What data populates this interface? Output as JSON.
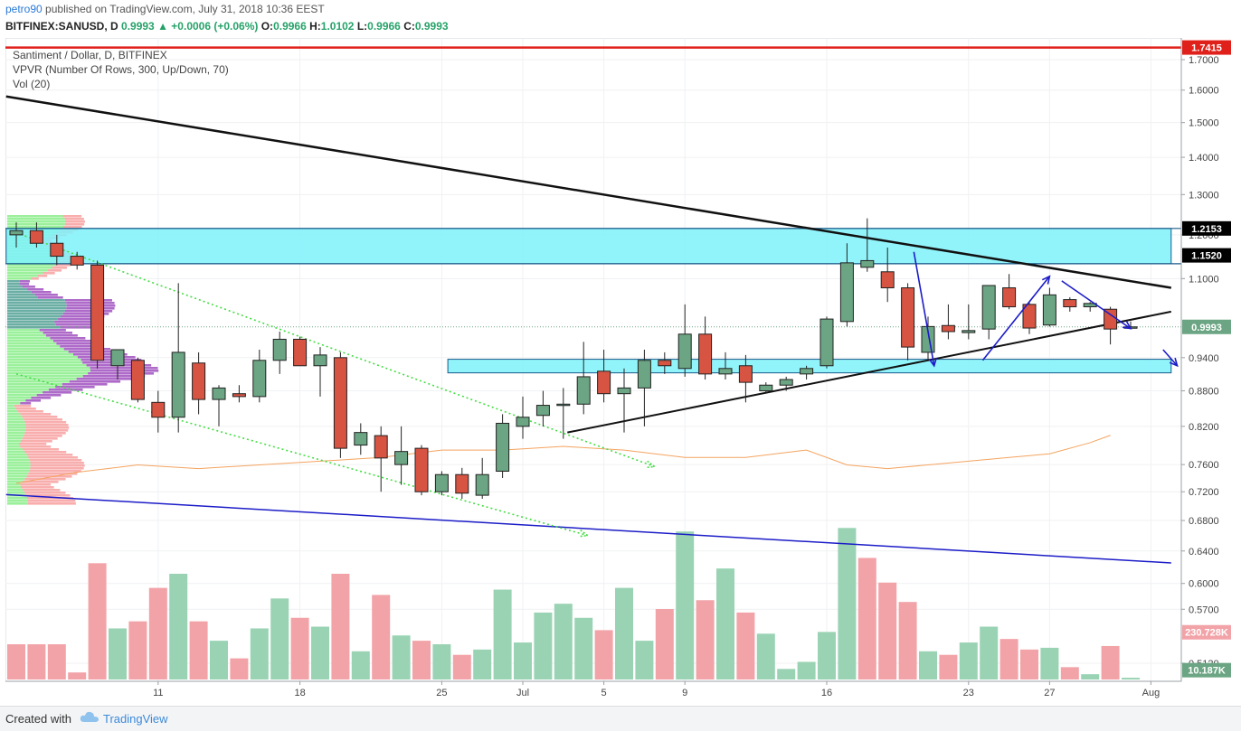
{
  "publication": {
    "user": "petro90",
    "text": "published on TradingView.com, July 31, 2018 10:36 EEST"
  },
  "ohlc": {
    "symbol": "BITFINEX:SANUSD, D",
    "last": "0.9993",
    "change": "+0.0006 (+0.06%)",
    "o_label": "O:",
    "o": "0.9966",
    "h_label": "H:",
    "h": "1.0102",
    "l_label": "L:",
    "l": "0.9966",
    "c_label": "C:",
    "c": "0.9993"
  },
  "legend": {
    "title": "Santiment / Dollar, D, BITFINEX",
    "vpvr": "VPVR (Number Of Rows, 300, Up/Down, 70)",
    "vol": "Vol (20)"
  },
  "footer": {
    "made": "Created with",
    "brand": "TradingView"
  },
  "colors": {
    "up": "#6ba583",
    "down": "#d75442",
    "zone": "#7ff2fa",
    "red_line": "#e0201a",
    "blue_line": "#1c1cc8",
    "green_dot": "#44dd44",
    "vol_up": "#9ad3b4",
    "vol_down": "#f2a3a8",
    "vol_ma": "#f4a460"
  },
  "chart_data": {
    "type": "candlestick",
    "title": "Santiment / Dollar, D, BITFINEX",
    "y_axis": {
      "scale": "log",
      "ticks": [
        "1.7000",
        "1.6000",
        "1.5000",
        "1.4000",
        "1.3000",
        "1.2000",
        "1.1000",
        "0.9400",
        "0.8800",
        "0.8200",
        "0.7600",
        "0.7200",
        "0.6800",
        "0.6400",
        "0.6000",
        "0.5700",
        "0.5120"
      ],
      "tick_values": [
        1.7,
        1.6,
        1.5,
        1.4,
        1.3,
        1.2,
        1.1,
        0.94,
        0.88,
        0.82,
        0.76,
        0.72,
        0.68,
        0.64,
        0.6,
        0.57,
        0.512
      ],
      "price_labels": [
        {
          "text": "1.7415",
          "value": 1.7415,
          "color": "#e0201a"
        },
        {
          "text": "1.2153",
          "value": 1.2153,
          "color": "#000000"
        },
        {
          "text": "1.1520",
          "value": 1.152,
          "color": "#000000"
        },
        {
          "text": "0.9993",
          "value": 0.9993,
          "color": "#6ba583"
        },
        {
          "text": "230.728K",
          "value": 0.5445,
          "color": "#f2a3a8"
        },
        {
          "text": "10.187K",
          "value": 0.505,
          "color": "#6ba583"
        }
      ]
    },
    "x_axis": {
      "ticks": [
        "11",
        "18",
        "25",
        "Jul",
        "5",
        "9",
        "16",
        "23",
        "27",
        "Aug"
      ],
      "tick_index": [
        7,
        14,
        21,
        25,
        29,
        33,
        40,
        47,
        51,
        56
      ]
    },
    "candles": [
      {
        "i": 0,
        "o": 1.2,
        "h": 1.23,
        "l": 1.17,
        "c": 1.21
      },
      {
        "i": 1,
        "o": 1.21,
        "h": 1.23,
        "l": 1.17,
        "c": 1.18
      },
      {
        "i": 2,
        "o": 1.18,
        "h": 1.2,
        "l": 1.13,
        "c": 1.15
      },
      {
        "i": 3,
        "o": 1.15,
        "h": 1.16,
        "l": 1.12,
        "c": 1.13
      },
      {
        "i": 4,
        "o": 1.13,
        "h": 1.14,
        "l": 0.92,
        "c": 0.935
      },
      {
        "i": 5,
        "o": 0.925,
        "h": 0.95,
        "l": 0.9,
        "c": 0.955
      },
      {
        "i": 6,
        "o": 0.935,
        "h": 0.94,
        "l": 0.86,
        "c": 0.865
      },
      {
        "i": 7,
        "o": 0.86,
        "h": 0.88,
        "l": 0.81,
        "c": 0.835
      },
      {
        "i": 8,
        "o": 0.835,
        "h": 1.09,
        "l": 0.81,
        "c": 0.95
      },
      {
        "i": 9,
        "o": 0.93,
        "h": 0.95,
        "l": 0.84,
        "c": 0.865
      },
      {
        "i": 10,
        "o": 0.865,
        "h": 0.89,
        "l": 0.82,
        "c": 0.885
      },
      {
        "i": 11,
        "o": 0.875,
        "h": 0.89,
        "l": 0.86,
        "c": 0.87
      },
      {
        "i": 12,
        "o": 0.87,
        "h": 0.955,
        "l": 0.86,
        "c": 0.935
      },
      {
        "i": 13,
        "o": 0.935,
        "h": 0.99,
        "l": 0.91,
        "c": 0.975
      },
      {
        "i": 14,
        "o": 0.975,
        "h": 0.98,
        "l": 0.93,
        "c": 0.925
      },
      {
        "i": 15,
        "o": 0.925,
        "h": 0.96,
        "l": 0.87,
        "c": 0.945
      },
      {
        "i": 16,
        "o": 0.94,
        "h": 0.95,
        "l": 0.77,
        "c": 0.785
      },
      {
        "i": 17,
        "o": 0.79,
        "h": 0.825,
        "l": 0.775,
        "c": 0.81
      },
      {
        "i": 18,
        "o": 0.805,
        "h": 0.82,
        "l": 0.72,
        "c": 0.77
      },
      {
        "i": 19,
        "o": 0.76,
        "h": 0.82,
        "l": 0.73,
        "c": 0.78
      },
      {
        "i": 20,
        "o": 0.785,
        "h": 0.79,
        "l": 0.715,
        "c": 0.72
      },
      {
        "i": 21,
        "o": 0.72,
        "h": 0.75,
        "l": 0.715,
        "c": 0.745
      },
      {
        "i": 22,
        "o": 0.745,
        "h": 0.755,
        "l": 0.71,
        "c": 0.718
      },
      {
        "i": 23,
        "o": 0.715,
        "h": 0.77,
        "l": 0.71,
        "c": 0.745
      },
      {
        "i": 24,
        "o": 0.75,
        "h": 0.84,
        "l": 0.74,
        "c": 0.825
      },
      {
        "i": 25,
        "o": 0.82,
        "h": 0.87,
        "l": 0.8,
        "c": 0.835
      },
      {
        "i": 26,
        "o": 0.838,
        "h": 0.88,
        "l": 0.82,
        "c": 0.855
      },
      {
        "i": 27,
        "o": 0.857,
        "h": 0.885,
        "l": 0.8,
        "c": 0.857
      },
      {
        "i": 28,
        "o": 0.857,
        "h": 0.97,
        "l": 0.84,
        "c": 0.905
      },
      {
        "i": 29,
        "o": 0.915,
        "h": 0.955,
        "l": 0.86,
        "c": 0.875
      },
      {
        "i": 30,
        "o": 0.875,
        "h": 0.92,
        "l": 0.81,
        "c": 0.885
      },
      {
        "i": 31,
        "o": 0.885,
        "h": 0.955,
        "l": 0.82,
        "c": 0.935
      },
      {
        "i": 32,
        "o": 0.935,
        "h": 0.95,
        "l": 0.91,
        "c": 0.925
      },
      {
        "i": 33,
        "o": 0.92,
        "h": 1.045,
        "l": 0.905,
        "c": 0.985
      },
      {
        "i": 34,
        "o": 0.985,
        "h": 1.02,
        "l": 0.9,
        "c": 0.91
      },
      {
        "i": 35,
        "o": 0.91,
        "h": 0.95,
        "l": 0.9,
        "c": 0.92
      },
      {
        "i": 36,
        "o": 0.925,
        "h": 0.945,
        "l": 0.86,
        "c": 0.895
      },
      {
        "i": 37,
        "o": 0.88,
        "h": 0.895,
        "l": 0.875,
        "c": 0.89
      },
      {
        "i": 38,
        "o": 0.89,
        "h": 0.905,
        "l": 0.88,
        "c": 0.9
      },
      {
        "i": 39,
        "o": 0.91,
        "h": 0.925,
        "l": 0.9,
        "c": 0.92
      },
      {
        "i": 40,
        "o": 0.925,
        "h": 1.02,
        "l": 0.92,
        "c": 1.015
      },
      {
        "i": 41,
        "o": 1.01,
        "h": 1.18,
        "l": 1.0,
        "c": 1.135
      },
      {
        "i": 42,
        "o": 1.125,
        "h": 1.24,
        "l": 1.115,
        "c": 1.14
      },
      {
        "i": 43,
        "o": 1.115,
        "h": 1.17,
        "l": 1.05,
        "c": 1.08
      },
      {
        "i": 44,
        "o": 1.08,
        "h": 1.09,
        "l": 0.935,
        "c": 0.96
      },
      {
        "i": 45,
        "o": 0.95,
        "h": 1.02,
        "l": 0.935,
        "c": 1.0
      },
      {
        "i": 46,
        "o": 1.002,
        "h": 1.045,
        "l": 0.975,
        "c": 0.99
      },
      {
        "i": 47,
        "o": 0.988,
        "h": 1.045,
        "l": 0.975,
        "c": 0.992
      },
      {
        "i": 48,
        "o": 0.995,
        "h": 1.085,
        "l": 0.975,
        "c": 1.085
      },
      {
        "i": 49,
        "o": 1.08,
        "h": 1.11,
        "l": 1.035,
        "c": 1.04
      },
      {
        "i": 50,
        "o": 1.045,
        "h": 1.05,
        "l": 0.985,
        "c": 0.997
      },
      {
        "i": 51,
        "o": 1.003,
        "h": 1.08,
        "l": 1.0,
        "c": 1.065
      },
      {
        "i": 52,
        "o": 1.055,
        "h": 1.06,
        "l": 1.03,
        "c": 1.04
      },
      {
        "i": 53,
        "o": 1.04,
        "h": 1.05,
        "l": 1.03,
        "c": 1.047
      },
      {
        "i": 54,
        "o": 1.035,
        "h": 1.04,
        "l": 0.965,
        "c": 0.995
      },
      {
        "i": 55,
        "o": 0.9966,
        "h": 1.0102,
        "l": 0.9966,
        "c": 0.9993
      }
    ],
    "volume": [
      {
        "i": 0,
        "v": 20,
        "dir": "down"
      },
      {
        "i": 1,
        "v": 20,
        "dir": "down"
      },
      {
        "i": 2,
        "v": 20,
        "dir": "down"
      },
      {
        "i": 3,
        "v": 4,
        "dir": "down"
      },
      {
        "i": 4,
        "v": 66,
        "dir": "down"
      },
      {
        "i": 5,
        "v": 29,
        "dir": "up"
      },
      {
        "i": 6,
        "v": 33,
        "dir": "down"
      },
      {
        "i": 7,
        "v": 52,
        "dir": "down"
      },
      {
        "i": 8,
        "v": 60,
        "dir": "up"
      },
      {
        "i": 9,
        "v": 33,
        "dir": "down"
      },
      {
        "i": 10,
        "v": 22,
        "dir": "up"
      },
      {
        "i": 11,
        "v": 12,
        "dir": "down"
      },
      {
        "i": 12,
        "v": 29,
        "dir": "up"
      },
      {
        "i": 13,
        "v": 46,
        "dir": "up"
      },
      {
        "i": 14,
        "v": 35,
        "dir": "down"
      },
      {
        "i": 15,
        "v": 30,
        "dir": "up"
      },
      {
        "i": 16,
        "v": 60,
        "dir": "down"
      },
      {
        "i": 17,
        "v": 16,
        "dir": "up"
      },
      {
        "i": 18,
        "v": 48,
        "dir": "down"
      },
      {
        "i": 19,
        "v": 25,
        "dir": "up"
      },
      {
        "i": 20,
        "v": 22,
        "dir": "down"
      },
      {
        "i": 21,
        "v": 20,
        "dir": "up"
      },
      {
        "i": 22,
        "v": 14,
        "dir": "down"
      },
      {
        "i": 23,
        "v": 17,
        "dir": "up"
      },
      {
        "i": 24,
        "v": 51,
        "dir": "up"
      },
      {
        "i": 25,
        "v": 21,
        "dir": "up"
      },
      {
        "i": 26,
        "v": 38,
        "dir": "up"
      },
      {
        "i": 27,
        "v": 43,
        "dir": "up"
      },
      {
        "i": 28,
        "v": 35,
        "dir": "up"
      },
      {
        "i": 29,
        "v": 28,
        "dir": "down"
      },
      {
        "i": 30,
        "v": 52,
        "dir": "up"
      },
      {
        "i": 31,
        "v": 22,
        "dir": "up"
      },
      {
        "i": 32,
        "v": 40,
        "dir": "down"
      },
      {
        "i": 33,
        "v": 84,
        "dir": "up"
      },
      {
        "i": 34,
        "v": 45,
        "dir": "down"
      },
      {
        "i": 35,
        "v": 63,
        "dir": "up"
      },
      {
        "i": 36,
        "v": 38,
        "dir": "down"
      },
      {
        "i": 37,
        "v": 26,
        "dir": "up"
      },
      {
        "i": 38,
        "v": 6,
        "dir": "up"
      },
      {
        "i": 39,
        "v": 10,
        "dir": "up"
      },
      {
        "i": 40,
        "v": 27,
        "dir": "up"
      },
      {
        "i": 41,
        "v": 86,
        "dir": "up"
      },
      {
        "i": 42,
        "v": 69,
        "dir": "down"
      },
      {
        "i": 43,
        "v": 55,
        "dir": "down"
      },
      {
        "i": 44,
        "v": 44,
        "dir": "down"
      },
      {
        "i": 45,
        "v": 16,
        "dir": "up"
      },
      {
        "i": 46,
        "v": 14,
        "dir": "down"
      },
      {
        "i": 47,
        "v": 21,
        "dir": "up"
      },
      {
        "i": 48,
        "v": 30,
        "dir": "up"
      },
      {
        "i": 49,
        "v": 23,
        "dir": "down"
      },
      {
        "i": 50,
        "v": 17,
        "dir": "down"
      },
      {
        "i": 51,
        "v": 18,
        "dir": "up"
      },
      {
        "i": 52,
        "v": 7,
        "dir": "down"
      },
      {
        "i": 53,
        "v": 3,
        "dir": "up"
      },
      {
        "i": 54,
        "v": 19,
        "dir": "down"
      },
      {
        "i": 55,
        "v": 1,
        "dir": "up"
      }
    ],
    "volume_ma": [
      [
        0,
        53
      ],
      [
        3,
        56
      ],
      [
        6,
        58
      ],
      [
        9,
        57
      ],
      [
        12,
        58
      ],
      [
        15,
        59
      ],
      [
        18,
        60
      ],
      [
        21,
        62
      ],
      [
        24,
        62
      ],
      [
        27,
        63
      ],
      [
        30,
        62
      ],
      [
        33,
        60
      ],
      [
        36,
        60
      ],
      [
        39,
        62
      ],
      [
        41,
        58
      ],
      [
        43,
        57
      ],
      [
        45,
        58
      ],
      [
        47,
        59
      ],
      [
        49,
        60
      ],
      [
        51,
        61
      ],
      [
        53,
        64
      ],
      [
        54,
        66
      ]
    ],
    "zones": [
      {
        "name": "upper-resistance-zone",
        "from_i": -0.5,
        "to_i": 57,
        "y_low": 1.133,
        "y_high": 1.2153
      },
      {
        "name": "support-zone",
        "from_i": 21.3,
        "to_i": 57,
        "y_low": 0.912,
        "y_high": 0.937
      }
    ],
    "horizontal_lines": [
      {
        "name": "high-line",
        "value": 1.7415,
        "color": "#e0201a"
      },
      {
        "name": "zone-top-line",
        "value": 1.2153,
        "color": "#1a5a8a"
      },
      {
        "name": "zone-bottom-line",
        "value": 1.133,
        "color": "#1a5a8a"
      }
    ],
    "trend_lines": [
      {
        "name": "main-downtrend",
        "x1": -0.5,
        "y1": 1.58,
        "x2": 57,
        "y2": 1.08,
        "color": "#111",
        "width": 2.5
      },
      {
        "name": "rising-support",
        "x1": 27.2,
        "y1": 0.81,
        "x2": 57,
        "y2": 1.03,
        "color": "#111",
        "width": 2
      },
      {
        "name": "long-blue-support",
        "x1": -0.5,
        "y1": 0.716,
        "x2": 57,
        "y2": 0.625,
        "color": "#1c1cc8",
        "width": 1.5
      }
    ],
    "dotted_lines": [
      {
        "name": "channel-upper",
        "x1": 0,
        "y1": 1.205,
        "x2": 31.5,
        "y2": 0.757
      },
      {
        "name": "channel-lower",
        "x1": 0,
        "y1": 0.91,
        "x2": 28.2,
        "y2": 0.66
      }
    ],
    "arrows": [
      {
        "name": "arrow-down-1",
        "x1": 44.3,
        "y1": 1.16,
        "x2": 45.3,
        "y2": 0.925
      },
      {
        "name": "arrow-up",
        "x1": 47.7,
        "y1": 0.935,
        "x2": 51,
        "y2": 1.105
      },
      {
        "name": "arrow-down-2",
        "x1": 51.6,
        "y1": 1.095,
        "x2": 55,
        "y2": 0.996
      },
      {
        "name": "arrow-down-3",
        "x1": 56.6,
        "y1": 0.955,
        "x2": 57.3,
        "y2": 0.925
      }
    ],
    "last_price": 0.9993
  }
}
